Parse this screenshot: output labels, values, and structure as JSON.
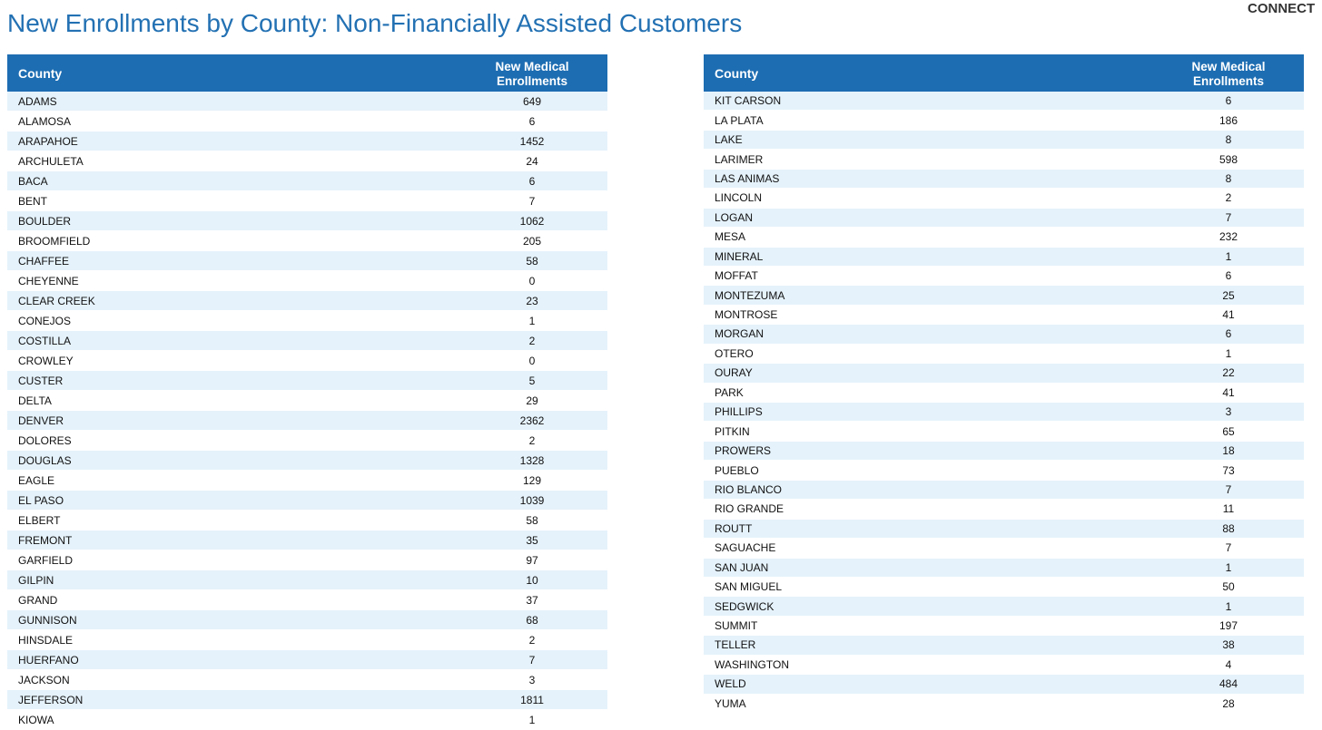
{
  "header": {
    "title": "New Enrollments by County: Non-Financially Assisted Customers",
    "logo": "CONNECT"
  },
  "tables": [
    {
      "columns": [
        "County",
        "New Medical Enrollments"
      ],
      "rows": [
        [
          "ADAMS",
          649
        ],
        [
          "ALAMOSA",
          6
        ],
        [
          "ARAPAHOE",
          1452
        ],
        [
          "ARCHULETA",
          24
        ],
        [
          "BACA",
          6
        ],
        [
          "BENT",
          7
        ],
        [
          "BOULDER",
          1062
        ],
        [
          "BROOMFIELD",
          205
        ],
        [
          "CHAFFEE",
          58
        ],
        [
          "CHEYENNE",
          0
        ],
        [
          "CLEAR CREEK",
          23
        ],
        [
          "CONEJOS",
          1
        ],
        [
          "COSTILLA",
          2
        ],
        [
          "CROWLEY",
          0
        ],
        [
          "CUSTER",
          5
        ],
        [
          "DELTA",
          29
        ],
        [
          "DENVER",
          2362
        ],
        [
          "DOLORES",
          2
        ],
        [
          "DOUGLAS",
          1328
        ],
        [
          "EAGLE",
          129
        ],
        [
          "EL PASO",
          1039
        ],
        [
          "ELBERT",
          58
        ],
        [
          "FREMONT",
          35
        ],
        [
          "GARFIELD",
          97
        ],
        [
          "GILPIN",
          10
        ],
        [
          "GRAND",
          37
        ],
        [
          "GUNNISON",
          68
        ],
        [
          "HINSDALE",
          2
        ],
        [
          "HUERFANO",
          7
        ],
        [
          "JACKSON",
          3
        ],
        [
          "JEFFERSON",
          1811
        ],
        [
          "KIOWA",
          1
        ]
      ]
    },
    {
      "columns": [
        "County",
        "New Medical Enrollments"
      ],
      "rows": [
        [
          "KIT CARSON",
          6
        ],
        [
          "LA PLATA",
          186
        ],
        [
          "LAKE",
          8
        ],
        [
          "LARIMER",
          598
        ],
        [
          "LAS ANIMAS",
          8
        ],
        [
          "LINCOLN",
          2
        ],
        [
          "LOGAN",
          7
        ],
        [
          "MESA",
          232
        ],
        [
          "MINERAL",
          1
        ],
        [
          "MOFFAT",
          6
        ],
        [
          "MONTEZUMA",
          25
        ],
        [
          "MONTROSE",
          41
        ],
        [
          "MORGAN",
          6
        ],
        [
          "OTERO",
          1
        ],
        [
          "OURAY",
          22
        ],
        [
          "PARK",
          41
        ],
        [
          "PHILLIPS",
          3
        ],
        [
          "PITKIN",
          65
        ],
        [
          "PROWERS",
          18
        ],
        [
          "PUEBLO",
          73
        ],
        [
          "RIO BLANCO",
          7
        ],
        [
          "RIO GRANDE",
          11
        ],
        [
          "ROUTT",
          88
        ],
        [
          "SAGUACHE",
          7
        ],
        [
          "SAN JUAN",
          1
        ],
        [
          "SAN MIGUEL",
          50
        ],
        [
          "SEDGWICK",
          1
        ],
        [
          "SUMMIT",
          197
        ],
        [
          "TELLER",
          38
        ],
        [
          "WASHINGTON",
          4
        ],
        [
          "WELD",
          484
        ],
        [
          "YUMA",
          28
        ]
      ]
    }
  ]
}
